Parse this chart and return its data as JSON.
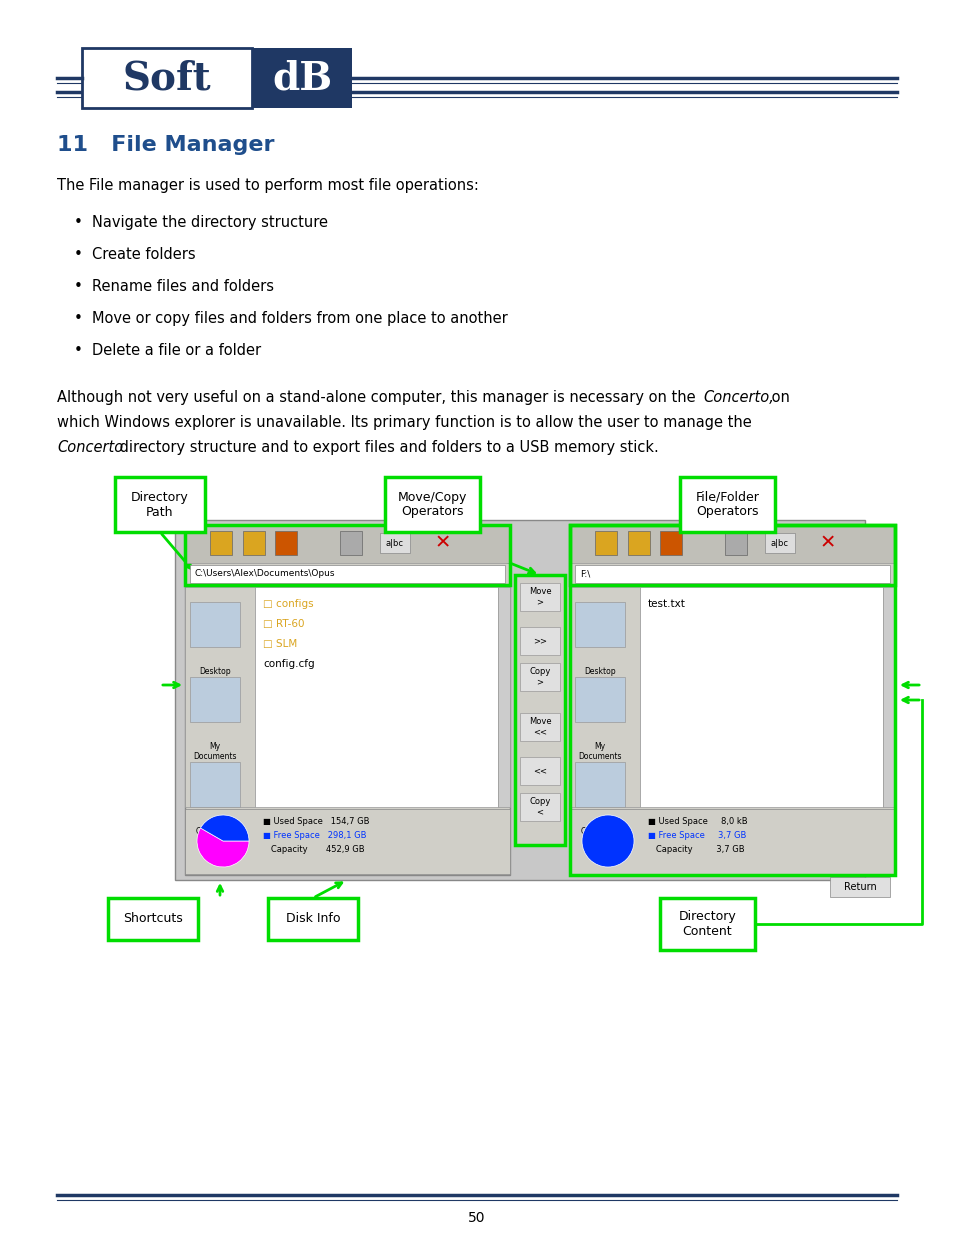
{
  "title": "11   File Manager",
  "title_color": "#1F4E8C",
  "body_text1": "The File manager is used to perform most file operations:",
  "bullets": [
    "Navigate the directory structure",
    "Create folders",
    "Rename files and folders",
    "Move or copy files and folders from one place to another",
    "Delete a file or a folder"
  ],
  "para_line1a": "Although not very useful on a stand-alone computer, this manager is necessary on the ",
  "para_line1b": "Concerto,",
  "para_line1c": " on",
  "para_line2": "which Windows explorer is unavailable. Its primary function is to allow the user to manage the",
  "para_line3a": "Concerto",
  "para_line3b": " directory structure and to export files and folders to a USB memory stick.",
  "page_number": "50",
  "bg_color": "#ffffff",
  "text_color": "#000000",
  "navy": "#1F3864",
  "green": "#00DD00",
  "gray_bg": "#C8C8C8",
  "gray_panel": "#D0CFC8",
  "gray_toolbar": "#C0BFB8",
  "white": "#ffffff",
  "magenta": "#FF00FF",
  "blue": "#0033FF",
  "red_x": "#CC0000",
  "gold": "#DAA520",
  "orange": "#CC5500"
}
